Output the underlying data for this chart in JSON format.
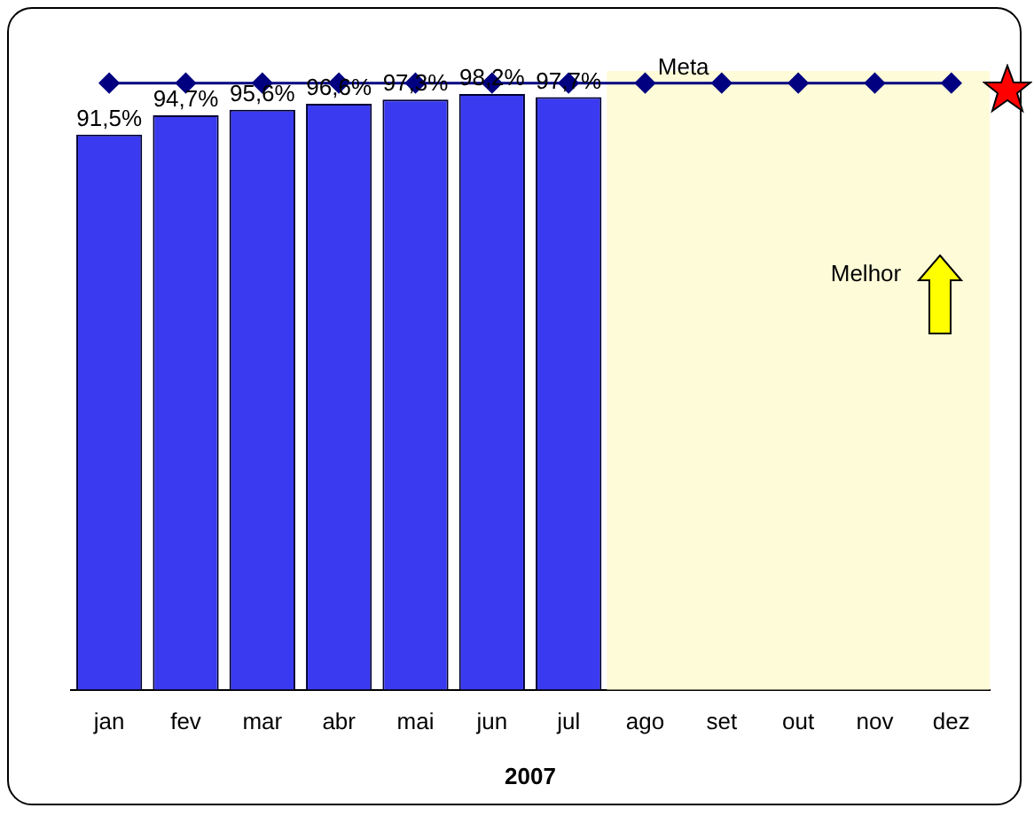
{
  "chart_data": {
    "type": "bar",
    "xlabel": "2007",
    "categories": [
      "jan",
      "fev",
      "mar",
      "abr",
      "mai",
      "jun",
      "jul",
      "ago",
      "set",
      "out",
      "nov",
      "dez"
    ],
    "series": [
      {
        "color": "#3a3af0",
        "values": [
          91.5,
          94.7,
          95.6,
          96.6,
          97.3,
          98.2,
          97.7,
          null,
          null,
          null,
          null,
          null
        ],
        "value_labels": [
          "91,5%",
          "94,7%",
          "95,6%",
          "96,6%",
          "97,3%",
          "98,2%",
          "97,7%",
          null,
          null,
          null,
          null,
          null
        ]
      },
      {
        "type": "line",
        "name": "Meta",
        "color": "#000080",
        "marker": "diamond",
        "values": [
          100,
          100,
          100,
          100,
          100,
          100,
          100,
          100,
          100,
          100,
          100,
          100
        ]
      }
    ],
    "ylim": [
      0,
      102
    ],
    "tick_labels": "x",
    "grid": false,
    "legend": false,
    "bands": [
      {
        "axis": "x",
        "from": "ago",
        "to": "dez",
        "color": "#fdfbd8"
      }
    ],
    "annotations": [
      "Melhor"
    ]
  }
}
